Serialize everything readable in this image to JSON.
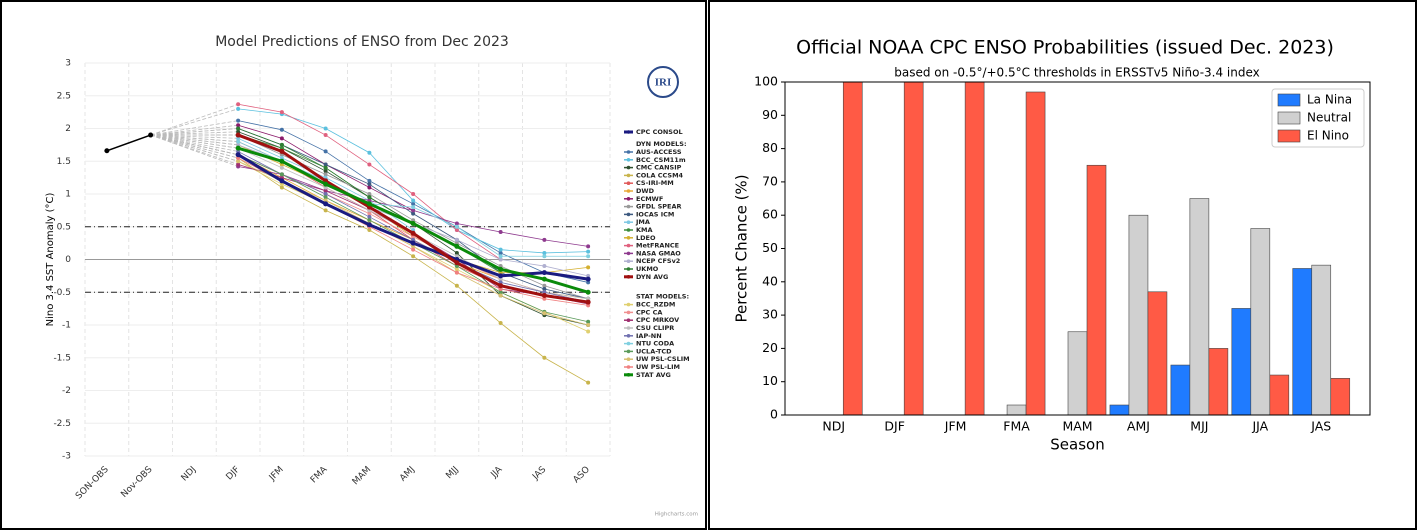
{
  "chart_data": [
    {
      "type": "line",
      "title": "Model Predictions of ENSO from Dec 2023",
      "ylabel": "Nino 3.4 SST Anomaly (°C)",
      "logo": "IRI",
      "credits": "Highcharts.com",
      "categories": [
        "SON-OBS",
        "Nov-OBS",
        "NDJ",
        "DJF",
        "JFM",
        "FMA",
        "MAM",
        "AMJ",
        "MJJ",
        "JJA",
        "JAS",
        "ASO"
      ],
      "ylim": [
        -3,
        3
      ],
      "yticks": [
        -3,
        -2.5,
        -2,
        -1.5,
        -1,
        -0.5,
        0,
        0.5,
        1,
        1.5,
        2,
        2.5,
        3
      ],
      "grid": true,
      "legend": "right",
      "hlines": [
        {
          "value": 0.5,
          "style": "dashdot"
        },
        {
          "value": 0,
          "style": "solid"
        },
        {
          "value": -0.5,
          "style": "dashdot"
        }
      ],
      "series": [
        {
          "color": "#000000",
          "width": 1.5,
          "values": [
            1.66,
            1.9,
            null,
            null,
            null,
            null,
            null,
            null,
            null,
            null,
            null,
            null
          ]
        },
        {
          "name": "CPC CONSOL",
          "color": "#1a1a80",
          "width": 3,
          "values": [
            null,
            null,
            null,
            1.6,
            1.2,
            0.85,
            0.53,
            0.25,
            0,
            -0.25,
            -0.2,
            -0.3
          ]
        },
        {
          "name": "AUS-ACCESS",
          "group": "DYN MODELS:",
          "color": "#4572a7",
          "values": [
            null,
            null,
            null,
            2.12,
            1.98,
            1.65,
            1.2,
            0.85,
            0.5,
            0.1,
            -0.2,
            -0.35
          ]
        },
        {
          "name": "BCC_CSM11m",
          "group": "DYN MODELS:",
          "color": "#5bc0de",
          "values": [
            null,
            null,
            null,
            2.3,
            2.22,
            2,
            1.63,
            0.9,
            0.45,
            0.15,
            0.1,
            0.12
          ]
        },
        {
          "name": "CMC CANSIP",
          "group": "DYN MODELS:",
          "color": "#2f4f2f",
          "values": [
            null,
            null,
            null,
            1.95,
            1.7,
            1.35,
            0.95,
            0.55,
            0.1,
            -0.55,
            -0.85,
            -1
          ]
        },
        {
          "name": "COLA CCSM4",
          "group": "DYN MODELS:",
          "color": "#c8b44c",
          "values": [
            null,
            null,
            null,
            1.55,
            1.1,
            0.75,
            0.45,
            0.05,
            -0.4,
            -0.97,
            -1.5,
            -1.88
          ]
        },
        {
          "name": "CS-IRI-MM",
          "group": "DYN MODELS:",
          "color": "#e05a5a",
          "values": [
            null,
            null,
            null,
            1.8,
            1.5,
            1.1,
            0.75,
            0.3,
            -0.1,
            -0.4,
            -0.55,
            -0.65
          ]
        },
        {
          "name": "DWD",
          "group": "DYN MODELS:",
          "color": "#e8a838",
          "values": [
            null,
            null,
            null,
            1.6,
            1.25,
            0.9,
            0.6,
            0.3,
            -0.05,
            -0.3,
            -0.5,
            -0.6
          ]
        },
        {
          "name": "ECMWF",
          "group": "DYN MODELS:",
          "color": "#8b1a6b",
          "values": [
            null,
            null,
            null,
            2.05,
            1.85,
            1.45,
            1.1,
            0.75,
            null,
            null,
            null,
            null
          ]
        },
        {
          "name": "GFDL SPEAR",
          "group": "DYN MODELS:",
          "color": "#999999",
          "values": [
            null,
            null,
            null,
            1.9,
            1.6,
            1.3,
            1,
            0.6,
            0.25,
            -0.1,
            -0.4,
            -0.6
          ]
        },
        {
          "name": "IOCAS ICM",
          "group": "DYN MODELS:",
          "color": "#3d5a80",
          "values": [
            null,
            null,
            null,
            2,
            1.75,
            1.45,
            1.15,
            0.7,
            0.3,
            -0.2,
            -0.45,
            -0.6
          ]
        },
        {
          "name": "JMA",
          "group": "DYN MODELS:",
          "color": "#7ec8e3",
          "values": [
            null,
            null,
            null,
            1.85,
            1.55,
            1.25,
            0.9,
            0.45,
            null,
            null,
            null,
            null
          ]
        },
        {
          "name": "KMA",
          "group": "DYN MODELS:",
          "color": "#3c8c3c",
          "values": [
            null,
            null,
            null,
            1.9,
            1.7,
            1.4,
            0.95,
            0.55,
            0.2,
            -0.2,
            null,
            null
          ]
        },
        {
          "name": "LDEO",
          "group": "DYN MODELS:",
          "color": "#d4b030",
          "values": [
            null,
            null,
            null,
            1.75,
            1.45,
            1.15,
            0.8,
            0.35,
            0,
            -0.2,
            -0.2,
            -0.12
          ]
        },
        {
          "name": "MetFRANCE",
          "group": "DYN MODELS:",
          "color": "#e0607e",
          "values": [
            null,
            null,
            null,
            2.37,
            2.25,
            1.9,
            1.45,
            1,
            0.45,
            0,
            null,
            null
          ]
        },
        {
          "name": "NASA GMAO",
          "group": "DYN MODELS:",
          "color": "#8e3a8e",
          "values": [
            null,
            null,
            null,
            1.42,
            1.3,
            1.05,
            0.9,
            0.75,
            0.55,
            0.42,
            0.3,
            0.2
          ]
        },
        {
          "name": "NCEP CFSv2",
          "group": "DYN MODELS:",
          "color": "#b0b0d0",
          "values": [
            null,
            null,
            null,
            1.75,
            1.5,
            1.2,
            0.8,
            0.55,
            0.3,
            0,
            -0.1,
            -0.25
          ]
        },
        {
          "name": "UKMO",
          "group": "DYN MODELS:",
          "color": "#2e7d32",
          "values": [
            null,
            null,
            null,
            2,
            1.75,
            1.4,
            0.95,
            0.55,
            null,
            null,
            null,
            null
          ]
        },
        {
          "name": "DYN AVG",
          "group": "DYN MODELS:",
          "color": "#a01010",
          "width": 3,
          "values": [
            null,
            null,
            null,
            1.9,
            1.65,
            1.2,
            0.8,
            0.4,
            -0.05,
            -0.4,
            -0.55,
            -0.65
          ]
        },
        {
          "name": "BCC_RZDM",
          "group": "STAT MODELS:",
          "color": "#e0d070",
          "values": [
            null,
            null,
            null,
            1.5,
            1.15,
            0.85,
            0.55,
            0.2,
            -0.15,
            -0.5,
            -0.8,
            -1.1
          ]
        },
        {
          "name": "CPC CA",
          "group": "STAT MODELS:",
          "color": "#f09090",
          "values": [
            null,
            null,
            null,
            1.6,
            1.3,
            1,
            0.7,
            0.35,
            0,
            -0.3,
            -0.5,
            -0.65
          ]
        },
        {
          "name": "CPC MRKOV",
          "group": "STAT MODELS:",
          "color": "#a03070",
          "values": [
            null,
            null,
            null,
            1.45,
            1.25,
            1.05,
            0.75,
            0.4,
            0,
            -0.45,
            -0.55,
            -0.68
          ]
        },
        {
          "name": "CSU CLIPR",
          "group": "STAT MODELS:",
          "color": "#c0c0c0",
          "values": [
            null,
            null,
            null,
            1.7,
            1.4,
            1.1,
            0.75,
            0.4,
            0.05,
            -0.3,
            -0.5,
            -0.6
          ]
        },
        {
          "name": "IAP-NN",
          "group": "STAT MODELS:",
          "color": "#7070b0",
          "values": [
            null,
            null,
            null,
            1.65,
            1.3,
            1,
            0.65,
            0.3,
            -0.05,
            -0.35,
            -0.5,
            -0.65
          ]
        },
        {
          "name": "NTU CODA",
          "group": "STAT MODELS:",
          "color": "#80d0e0",
          "values": [
            null,
            null,
            null,
            1.8,
            1.5,
            1.2,
            0.85,
            0.8,
            0.5,
            0.05,
            0.05,
            0.05
          ]
        },
        {
          "name": "UCLA-TCD",
          "group": "STAT MODELS:",
          "color": "#5a9a5a",
          "values": [
            null,
            null,
            null,
            1.6,
            1.3,
            0.95,
            0.6,
            0.25,
            -0.1,
            -0.5,
            -0.8,
            -0.95
          ]
        },
        {
          "name": "UW PSL-CSLIM",
          "group": "STAT MODELS:",
          "color": "#d8c070",
          "values": [
            null,
            null,
            null,
            1.5,
            1.2,
            0.9,
            0.55,
            0.2,
            -0.2,
            -0.55,
            -0.82,
            -1
          ]
        },
        {
          "name": "UW PSL-LIM",
          "group": "STAT MODELS:",
          "color": "#f08080",
          "values": [
            null,
            null,
            null,
            1.55,
            1.2,
            0.85,
            0.5,
            0.15,
            -0.2,
            -0.45,
            -0.6,
            -0.7
          ]
        },
        {
          "name": "STAT AVG",
          "group": "STAT MODELS:",
          "color": "#0a8a0a",
          "width": 3,
          "values": [
            null,
            null,
            null,
            1.7,
            1.5,
            1.15,
            0.85,
            0.55,
            0.2,
            -0.15,
            -0.3,
            -0.5
          ]
        }
      ]
    },
    {
      "type": "bar",
      "title": "Official NOAA CPC ENSO Probabilities (issued Dec. 2023)",
      "subtitle": "based on -0.5°/+0.5°C thresholds in ERSSTv5 Niño-3.4 index",
      "xlabel": "Season",
      "ylabel": "Percent Chance (%)",
      "categories": [
        "NDJ",
        "DJF",
        "JFM",
        "FMA",
        "MAM",
        "AMJ",
        "MJJ",
        "JJA",
        "JAS"
      ],
      "ylim": [
        0,
        100
      ],
      "yticks": [
        0,
        10,
        20,
        30,
        40,
        50,
        60,
        70,
        80,
        90,
        100
      ],
      "legend": "upper right",
      "series": [
        {
          "name": "La Nina",
          "color": "#1f7bff",
          "values": [
            0,
            0,
            0,
            0,
            0,
            3,
            15,
            32,
            44
          ]
        },
        {
          "name": "Neutral",
          "color": "#d0d0d0",
          "values": [
            0,
            0,
            0,
            3,
            25,
            60,
            65,
            56,
            45
          ]
        },
        {
          "name": "El Nino",
          "color": "#ff5a45",
          "values": [
            100,
            100,
            100,
            97,
            75,
            37,
            20,
            12,
            11
          ]
        }
      ]
    }
  ]
}
